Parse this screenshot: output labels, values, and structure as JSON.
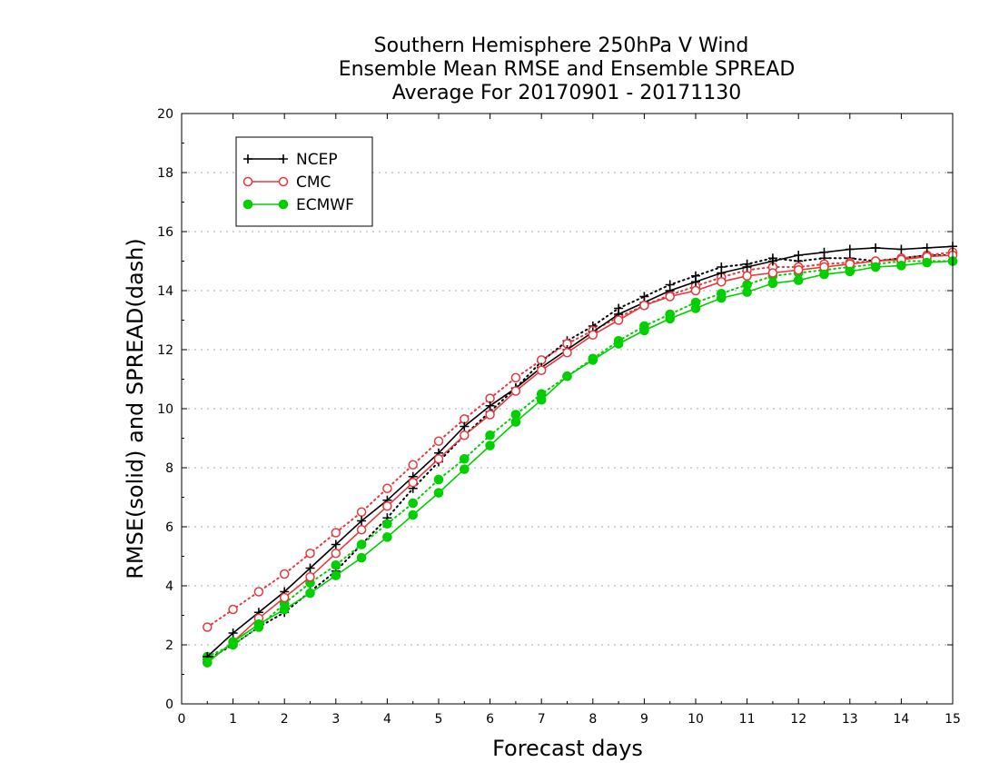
{
  "chart_data": {
    "type": "line",
    "title": [
      "Southern Hemisphere 250hPa V Wind",
      "Ensemble Mean RMSE and Ensemble SPREAD",
      "Average For 20170901 - 20171130"
    ],
    "xlabel": "Forecast days",
    "ylabel": "RMSE(solid) and SPREAD(dash)",
    "xlim": [
      0,
      15
    ],
    "ylim": [
      0,
      20
    ],
    "xticks": [
      "0",
      "1",
      "2",
      "3",
      "4",
      "5",
      "6",
      "7",
      "8",
      "9",
      "10",
      "11",
      "12",
      "13",
      "14",
      "15"
    ],
    "yticks": [
      "0",
      "2",
      "4",
      "6",
      "8",
      "10",
      "12",
      "14",
      "16",
      "18",
      "20"
    ],
    "grid": true,
    "legend_position": "top-left",
    "x": [
      0.5,
      1,
      1.5,
      2,
      2.5,
      3,
      3.5,
      4,
      4.5,
      5,
      5.5,
      6,
      6.5,
      7,
      7.5,
      8,
      8.5,
      9,
      9.5,
      10,
      10.5,
      11,
      11.5,
      12,
      12.5,
      13,
      13.5,
      14,
      14.5,
      15
    ],
    "series": [
      {
        "name": "NCEP",
        "kind": "rmse",
        "color": "#000000",
        "marker": "plus",
        "values": [
          1.6,
          2.4,
          3.1,
          3.8,
          4.6,
          5.4,
          6.2,
          6.9,
          7.7,
          8.5,
          9.4,
          10.1,
          10.7,
          11.4,
          12.0,
          12.6,
          13.2,
          13.6,
          14.0,
          14.3,
          14.6,
          14.8,
          15.0,
          15.2,
          15.3,
          15.4,
          15.45,
          15.4,
          15.45,
          15.5
        ]
      },
      {
        "name": "NCEP",
        "kind": "spread",
        "color": "#000000",
        "marker": "plus",
        "values": [
          1.5,
          2.0,
          2.6,
          3.1,
          3.8,
          4.5,
          5.4,
          6.3,
          7.3,
          8.2,
          9.1,
          9.9,
          10.7,
          11.6,
          12.3,
          12.8,
          13.4,
          13.8,
          14.2,
          14.5,
          14.8,
          14.9,
          15.1,
          15.0,
          15.1,
          15.1,
          15.0,
          15.1,
          15.2,
          15.2
        ]
      },
      {
        "name": "CMC",
        "kind": "rmse",
        "color": "#e8383d",
        "marker": "circle",
        "values": [
          1.4,
          2.1,
          2.9,
          3.6,
          4.3,
          5.1,
          5.9,
          6.7,
          7.5,
          8.3,
          9.1,
          9.8,
          10.6,
          11.3,
          11.9,
          12.5,
          13.0,
          13.5,
          13.8,
          14.0,
          14.3,
          14.5,
          14.6,
          14.7,
          14.8,
          14.9,
          15.0,
          15.05,
          15.15,
          15.2
        ]
      },
      {
        "name": "CMC",
        "kind": "spread",
        "color": "#e8383d",
        "marker": "circle",
        "values": [
          2.6,
          3.2,
          3.8,
          4.4,
          5.1,
          5.8,
          6.5,
          7.3,
          8.1,
          8.9,
          9.65,
          10.35,
          11.05,
          11.65,
          12.2,
          12.65,
          13.1,
          13.5,
          13.85,
          14.15,
          14.45,
          14.7,
          14.8,
          14.8,
          14.9,
          14.95,
          15.0,
          15.1,
          15.2,
          15.3
        ]
      },
      {
        "name": "ECMWF",
        "kind": "rmse",
        "color": "#00d000",
        "marker": "dot",
        "values": [
          1.4,
          2.1,
          2.7,
          3.2,
          3.75,
          4.35,
          4.95,
          5.65,
          6.4,
          7.15,
          7.95,
          8.75,
          9.55,
          10.3,
          11.1,
          11.65,
          12.2,
          12.65,
          13.05,
          13.4,
          13.75,
          13.95,
          14.25,
          14.35,
          14.55,
          14.65,
          14.8,
          14.85,
          14.95,
          15.0
        ]
      },
      {
        "name": "ECMWF",
        "kind": "spread",
        "color": "#00d000",
        "marker": "dot",
        "values": [
          1.6,
          2.0,
          2.6,
          3.4,
          4.1,
          4.7,
          5.4,
          6.1,
          6.8,
          7.6,
          8.3,
          9.1,
          9.8,
          10.5,
          11.1,
          11.7,
          12.3,
          12.8,
          13.2,
          13.6,
          13.9,
          14.2,
          14.5,
          14.6,
          14.7,
          14.8,
          14.9,
          15.0,
          15.0,
          15.0
        ]
      }
    ]
  },
  "legend": [
    {
      "label": "NCEP",
      "color": "#000000",
      "marker": "plus"
    },
    {
      "label": "CMC",
      "color": "#e8383d",
      "marker": "circle"
    },
    {
      "label": "ECMWF",
      "color": "#00d000",
      "marker": "dot"
    }
  ]
}
